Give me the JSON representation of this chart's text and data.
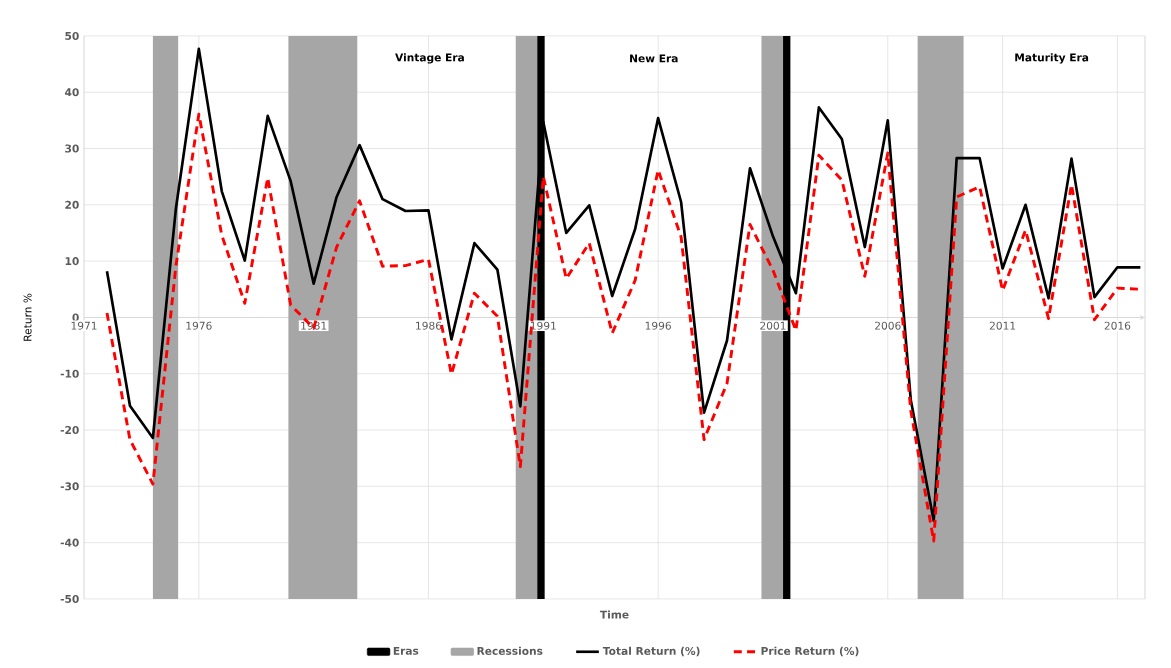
{
  "chart_data": {
    "type": "line",
    "xlabel": "Time",
    "ylabel": "Return %",
    "x": [
      1972,
      1973,
      1974,
      1975,
      1976,
      1977,
      1978,
      1979,
      1980,
      1981,
      1982,
      1983,
      1984,
      1985,
      1986,
      1987,
      1988,
      1989,
      1990,
      1991,
      1992,
      1993,
      1994,
      1995,
      1996,
      1997,
      1998,
      1999,
      2000,
      2001,
      2002,
      2003,
      2004,
      2005,
      2006,
      2007,
      2008,
      2009,
      2010,
      2011,
      2012,
      2013,
      2014,
      2015,
      2016,
      2017
    ],
    "series": [
      {
        "name": "Total Return (%)",
        "color": "#000000",
        "line_style": "solid",
        "values": [
          8.2,
          -15.7,
          -21.4,
          19.3,
          47.7,
          22.4,
          10.1,
          35.8,
          24.2,
          6.0,
          21.4,
          30.6,
          21.0,
          18.9,
          19.0,
          -3.9,
          13.2,
          8.5,
          -15.8,
          34.7,
          15.0,
          19.9,
          3.8,
          15.7,
          35.4,
          20.5,
          -16.9,
          -4.1,
          26.5,
          14.4,
          4.3,
          37.3,
          31.7,
          12.5,
          35.0,
          -14.6,
          -36.1,
          28.3,
          28.3,
          8.7,
          20.0,
          3.4,
          28.2,
          3.6,
          8.9,
          8.9
        ]
      },
      {
        "name": "Price Return (%)",
        "color": "#ff0000",
        "line_style": "dashed",
        "values": [
          0.8,
          -21.7,
          -29.6,
          9.1,
          36.1,
          14.6,
          2.5,
          24.8,
          2.2,
          -1.9,
          12.5,
          20.7,
          9.1,
          9.2,
          10.3,
          -10.1,
          4.3,
          0.2,
          -26.5,
          25.0,
          6.9,
          13.2,
          -2.8,
          6.6,
          26.2,
          14.3,
          -21.7,
          -11.7,
          16.5,
          8.4,
          -2.3,
          28.8,
          24.4,
          7.3,
          29.2,
          -16.5,
          -39.7,
          21.4,
          23.2,
          4.8,
          15.5,
          -0.2,
          23.6,
          -0.4,
          5.2,
          5.0
        ]
      }
    ],
    "xlim": [
      1971,
      2017.2
    ],
    "ylim": [
      -50,
      50
    ],
    "xticks": [
      1971,
      1976,
      1981,
      1986,
      1991,
      1996,
      2001,
      2006,
      2011,
      2016
    ],
    "yticks": [
      -50,
      -40,
      -30,
      -20,
      -10,
      0,
      10,
      20,
      30,
      40,
      50
    ],
    "grid": true,
    "legend": "bottom",
    "bands": [
      {
        "axis": "x",
        "from": 1974.0,
        "to": 1975.1,
        "label": "Recessions",
        "color": "#a6a6a6"
      },
      {
        "axis": "x",
        "from": 1979.9,
        "to": 1982.9,
        "color": "#a6a6a6"
      },
      {
        "axis": "x",
        "from": 1989.8,
        "to": 1990.8,
        "color": "#a6a6a6"
      },
      {
        "axis": "x",
        "from": 2000.5,
        "to": 2001.5,
        "color": "#a6a6a6"
      },
      {
        "axis": "x",
        "from": 2007.3,
        "to": 2009.3,
        "color": "#a6a6a6"
      }
    ],
    "ref_lines": [
      {
        "axis": "x",
        "value": 1990.9,
        "label": "Eras",
        "color": "#000000"
      },
      {
        "axis": "x",
        "value": 2001.6,
        "color": "#000000"
      }
    ],
    "annotations": [
      "Vintage Era",
      "New Era",
      "Maturity Era"
    ]
  }
}
